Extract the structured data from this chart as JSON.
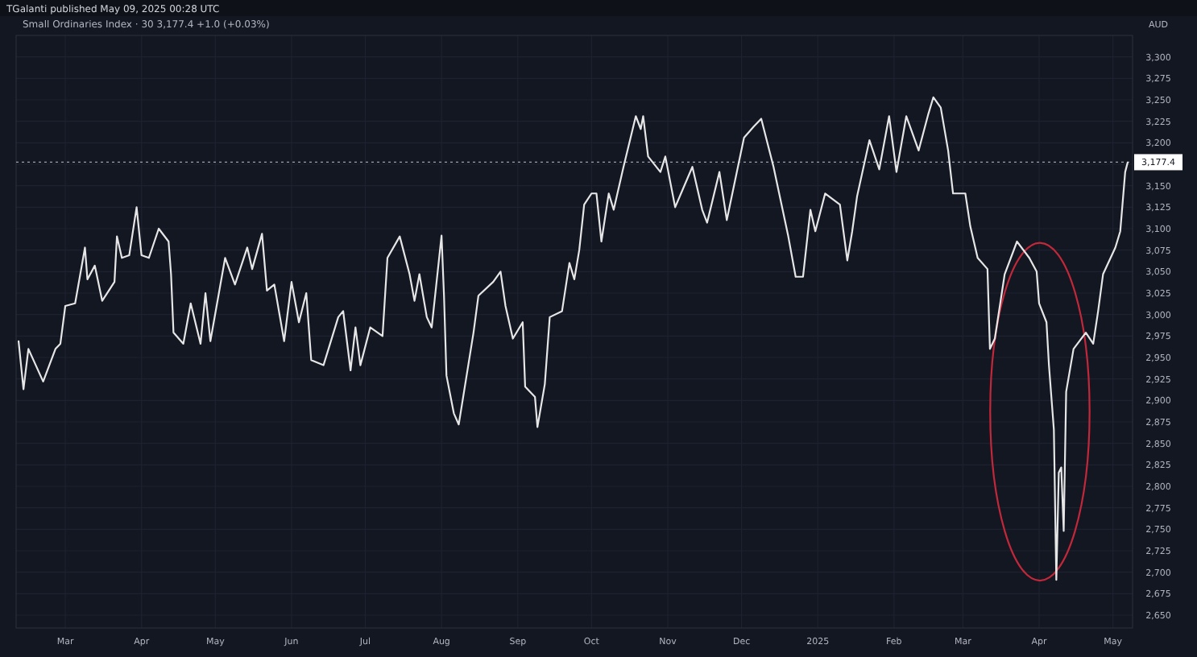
{
  "chart_data": {
    "type": "line",
    "title": "Small Ordinaries Index · 30  3,177.4  +1.0 (+0.03%)",
    "ylabel": "AUD",
    "annotations": [
      "TGalanti published May 09, 2025 00:28 UTC"
    ],
    "x": [
      "2024-02-11",
      "2024-02-13",
      "2024-02-15",
      "2024-02-21",
      "2024-02-26",
      "2024-02-28",
      "2024-03-01",
      "2024-03-05",
      "2024-03-09",
      "2024-03-10",
      "2024-03-13",
      "2024-03-16",
      "2024-03-21",
      "2024-03-22",
      "2024-03-24",
      "2024-03-27",
      "2024-03-30",
      "2024-04-01",
      "2024-04-04",
      "2024-04-08",
      "2024-04-12",
      "2024-04-13",
      "2024-04-14",
      "2024-04-18",
      "2024-04-21",
      "2024-04-25",
      "2024-04-27",
      "2024-04-29",
      "2024-05-05",
      "2024-05-09",
      "2024-05-14",
      "2024-05-16",
      "2024-05-20",
      "2024-05-22",
      "2024-05-25",
      "2024-05-29",
      "2024-06-01",
      "2024-06-04",
      "2024-06-07",
      "2024-06-09",
      "2024-06-14",
      "2024-06-20",
      "2024-06-22",
      "2024-06-25",
      "2024-06-27",
      "2024-06-29",
      "2024-07-03",
      "2024-07-08",
      "2024-07-10",
      "2024-07-15",
      "2024-07-19",
      "2024-07-21",
      "2024-07-23",
      "2024-07-26",
      "2024-07-28",
      "2024-08-01",
      "2024-08-02",
      "2024-08-03",
      "2024-08-06",
      "2024-08-08",
      "2024-08-14",
      "2024-08-16",
      "2024-08-22",
      "2024-08-25",
      "2024-08-27",
      "2024-08-30",
      "2024-09-03",
      "2024-09-04",
      "2024-09-08",
      "2024-09-09",
      "2024-09-12",
      "2024-09-14",
      "2024-09-19",
      "2024-09-22",
      "2024-09-24",
      "2024-09-26",
      "2024-09-28",
      "2024-10-01",
      "2024-10-03",
      "2024-10-05",
      "2024-10-08",
      "2024-10-10",
      "2024-10-14",
      "2024-10-19",
      "2024-10-21",
      "2024-10-22",
      "2024-10-24",
      "2024-10-29",
      "2024-10-31",
      "2024-11-04",
      "2024-11-11",
      "2024-11-15",
      "2024-11-17",
      "2024-11-22",
      "2024-11-25",
      "2024-12-02",
      "2024-12-06",
      "2024-12-09",
      "2024-12-14",
      "2024-12-20",
      "2024-12-23",
      "2024-12-26",
      "2024-12-29",
      "2024-12-31",
      "2025-01-04",
      "2025-01-10",
      "2025-01-13",
      "2025-01-15",
      "2025-01-17",
      "2025-01-22",
      "2025-01-26",
      "2025-01-30",
      "2025-02-02",
      "2025-02-06",
      "2025-02-11",
      "2025-02-15",
      "2025-02-17",
      "2025-02-20",
      "2025-02-23",
      "2025-02-25",
      "2025-03-02",
      "2025-03-04",
      "2025-03-07",
      "2025-03-11",
      "2025-03-12",
      "2025-03-14",
      "2025-03-18",
      "2025-03-23",
      "2025-03-28",
      "2025-03-31",
      "2025-04-01",
      "2025-04-04",
      "2025-04-05",
      "2025-04-07",
      "2025-04-08",
      "2025-04-09",
      "2025-04-10",
      "2025-04-11",
      "2025-04-12",
      "2025-04-15",
      "2025-04-20",
      "2025-04-23",
      "2025-04-25",
      "2025-04-27",
      "2025-05-02",
      "2025-05-04",
      "2025-05-06",
      "2025-05-07"
    ],
    "series": [
      {
        "color": "#e6e6e6",
        "values": [
          2969,
          2913,
          2960,
          2922,
          2960,
          2966,
          3010,
          3013,
          3078,
          3041,
          3057,
          3016,
          3038,
          3091,
          3066,
          3069,
          3125,
          3069,
          3066,
          3100,
          3085,
          3047,
          2979,
          2966,
          3013,
          2966,
          3025,
          2969,
          3066,
          3035,
          3078,
          3053,
          3094,
          3028,
          3035,
          2969,
          3038,
          2991,
          3025,
          2947,
          2941,
          2997,
          3004,
          2935,
          2985,
          2941,
          2985,
          2975,
          3066,
          3091,
          3047,
          3016,
          3047,
          2997,
          2985,
          3092,
          3022,
          2929,
          2885,
          2872,
          2979,
          3022,
          3038,
          3050,
          3010,
          2972,
          2991,
          2916,
          2904,
          2869,
          2919,
          2997,
          3004,
          3060,
          3041,
          3075,
          3128,
          3141,
          3141,
          3085,
          3141,
          3122,
          3172,
          3231,
          3216,
          3231,
          3184,
          3166,
          3184,
          3125,
          3172,
          3122,
          3107,
          3166,
          3110,
          3206,
          3219,
          3228,
          3172,
          3091,
          3044,
          3044,
          3122,
          3097,
          3141,
          3128,
          3063,
          3097,
          3138,
          3203,
          3169,
          3231,
          3166,
          3231,
          3191,
          3234,
          3253,
          3241,
          3191,
          3141,
          3141,
          3103,
          3066,
          3053,
          2960,
          2972,
          3047,
          3085,
          3066,
          3050,
          3013,
          2991,
          2941,
          2866,
          2691,
          2816,
          2822,
          2748,
          2910,
          2960,
          2979,
          2966,
          3004,
          3047,
          3078,
          3097,
          3166,
          3177
        ]
      }
    ],
    "xlim": [
      "2024-02-10",
      "2025-05-09"
    ],
    "xticks": [
      {
        "value": "2024-03-01",
        "label": "Mar"
      },
      {
        "value": "2024-04-01",
        "label": "Apr"
      },
      {
        "value": "2024-05-01",
        "label": "May"
      },
      {
        "value": "2024-06-01",
        "label": "Jun"
      },
      {
        "value": "2024-07-01",
        "label": "Jul"
      },
      {
        "value": "2024-08-01",
        "label": "Aug"
      },
      {
        "value": "2024-09-01",
        "label": "Sep"
      },
      {
        "value": "2024-10-01",
        "label": "Oct"
      },
      {
        "value": "2024-11-01",
        "label": "Nov"
      },
      {
        "value": "2024-12-01",
        "label": "Dec"
      },
      {
        "value": "2025-01-01",
        "label": "2025"
      },
      {
        "value": "2025-02-01",
        "label": "Feb"
      },
      {
        "value": "2025-03-01",
        "label": "Mar"
      },
      {
        "value": "2025-04-01",
        "label": "Apr"
      },
      {
        "value": "2025-05-01",
        "label": "May"
      }
    ],
    "ylim": [
      2635,
      3325
    ],
    "yticks": [
      {
        "value": 2650,
        "label": "2,650"
      },
      {
        "value": 2675,
        "label": "2,675"
      },
      {
        "value": 2700,
        "label": "2,700"
      },
      {
        "value": 2725,
        "label": "2,725"
      },
      {
        "value": 2750,
        "label": "2,750"
      },
      {
        "value": 2775,
        "label": "2,775"
      },
      {
        "value": 2800,
        "label": "2,800"
      },
      {
        "value": 2825,
        "label": "2,825"
      },
      {
        "value": 2850,
        "label": "2,850"
      },
      {
        "value": 2875,
        "label": "2,875"
      },
      {
        "value": 2900,
        "label": "2,900"
      },
      {
        "value": 2925,
        "label": "2,925"
      },
      {
        "value": 2950,
        "label": "2,950"
      },
      {
        "value": 2975,
        "label": "2,975"
      },
      {
        "value": 3000,
        "label": "3,000"
      },
      {
        "value": 3025,
        "label": "3,025"
      },
      {
        "value": 3050,
        "label": "3,050"
      },
      {
        "value": 3075,
        "label": "3,075"
      },
      {
        "value": 3100,
        "label": "3,100"
      },
      {
        "value": 3125,
        "label": "3,125"
      },
      {
        "value": 3150,
        "label": "3,150"
      },
      {
        "value": 3175,
        "label": null
      },
      {
        "value": 3200,
        "label": "3,200"
      },
      {
        "value": 3225,
        "label": "3,225"
      },
      {
        "value": 3250,
        "label": "3,250"
      },
      {
        "value": 3275,
        "label": "3,275"
      },
      {
        "value": 3300,
        "label": "3,300"
      }
    ],
    "ref_lines": [
      {
        "axis": "y",
        "value": 3177.4,
        "label": "3,177.4",
        "color": "#9aa0ad",
        "line_style": "dotted"
      }
    ],
    "grid": true,
    "marker": "none",
    "line_style": "solid"
  }
}
